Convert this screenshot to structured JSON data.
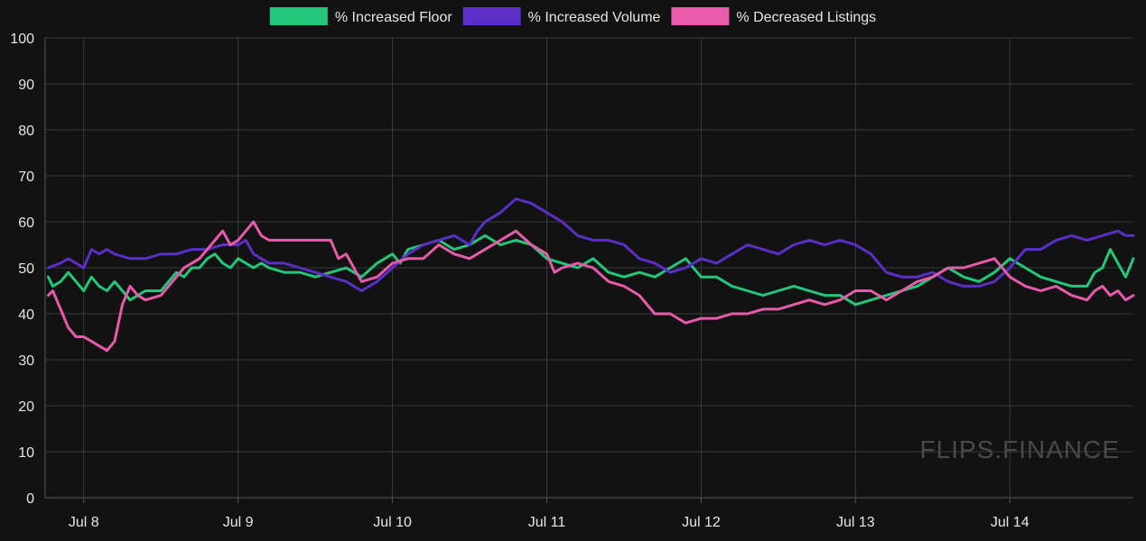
{
  "chart_data": {
    "type": "line",
    "title": "",
    "xlabel": "",
    "ylabel": "",
    "ylim": [
      0,
      100
    ],
    "yticks": [
      0,
      10,
      20,
      30,
      40,
      50,
      60,
      70,
      80,
      90,
      100
    ],
    "xlim": [
      7.75,
      14.8
    ],
    "xticks": [
      {
        "value": 8,
        "label": "Jul 8"
      },
      {
        "value": 9,
        "label": "Jul 9"
      },
      {
        "value": 10,
        "label": "Jul 10"
      },
      {
        "value": 11,
        "label": "Jul 11"
      },
      {
        "value": 12,
        "label": "Jul 12"
      },
      {
        "value": 13,
        "label": "Jul 13"
      },
      {
        "value": 14,
        "label": "Jul 14"
      }
    ],
    "grid": true,
    "legend_position": "top-center",
    "series": [
      {
        "name": "% Increased Floor",
        "color": "#22c77a",
        "points": [
          [
            7.77,
            48
          ],
          [
            7.8,
            46
          ],
          [
            7.85,
            47
          ],
          [
            7.9,
            49
          ],
          [
            7.95,
            47
          ],
          [
            8.0,
            45
          ],
          [
            8.05,
            48
          ],
          [
            8.1,
            46
          ],
          [
            8.15,
            45
          ],
          [
            8.2,
            47
          ],
          [
            8.25,
            45
          ],
          [
            8.3,
            43
          ],
          [
            8.4,
            45
          ],
          [
            8.5,
            45
          ],
          [
            8.55,
            47
          ],
          [
            8.6,
            49
          ],
          [
            8.65,
            48
          ],
          [
            8.7,
            50
          ],
          [
            8.75,
            50
          ],
          [
            8.8,
            52
          ],
          [
            8.85,
            53
          ],
          [
            8.9,
            51
          ],
          [
            8.95,
            50
          ],
          [
            9.0,
            52
          ],
          [
            9.05,
            51
          ],
          [
            9.1,
            50
          ],
          [
            9.15,
            51
          ],
          [
            9.2,
            50
          ],
          [
            9.3,
            49
          ],
          [
            9.4,
            49
          ],
          [
            9.5,
            48
          ],
          [
            9.6,
            49
          ],
          [
            9.7,
            50
          ],
          [
            9.8,
            48
          ],
          [
            9.9,
            51
          ],
          [
            10.0,
            53
          ],
          [
            10.05,
            51
          ],
          [
            10.1,
            54
          ],
          [
            10.2,
            55
          ],
          [
            10.3,
            56
          ],
          [
            10.4,
            54
          ],
          [
            10.5,
            55
          ],
          [
            10.6,
            57
          ],
          [
            10.7,
            55
          ],
          [
            10.8,
            56
          ],
          [
            10.9,
            55
          ],
          [
            11.0,
            52
          ],
          [
            11.1,
            51
          ],
          [
            11.2,
            50
          ],
          [
            11.3,
            52
          ],
          [
            11.4,
            49
          ],
          [
            11.5,
            48
          ],
          [
            11.6,
            49
          ],
          [
            11.7,
            48
          ],
          [
            11.8,
            50
          ],
          [
            11.9,
            52
          ],
          [
            12.0,
            48
          ],
          [
            12.1,
            48
          ],
          [
            12.2,
            46
          ],
          [
            12.3,
            45
          ],
          [
            12.4,
            44
          ],
          [
            12.5,
            45
          ],
          [
            12.6,
            46
          ],
          [
            12.7,
            45
          ],
          [
            12.8,
            44
          ],
          [
            12.9,
            44
          ],
          [
            13.0,
            42
          ],
          [
            13.1,
            43
          ],
          [
            13.2,
            44
          ],
          [
            13.3,
            45
          ],
          [
            13.4,
            46
          ],
          [
            13.5,
            48
          ],
          [
            13.6,
            50
          ],
          [
            13.7,
            48
          ],
          [
            13.8,
            47
          ],
          [
            13.9,
            49
          ],
          [
            14.0,
            52
          ],
          [
            14.05,
            51
          ],
          [
            14.1,
            50
          ],
          [
            14.2,
            48
          ],
          [
            14.3,
            47
          ],
          [
            14.4,
            46
          ],
          [
            14.5,
            46
          ],
          [
            14.55,
            49
          ],
          [
            14.6,
            50
          ],
          [
            14.65,
            54
          ],
          [
            14.7,
            51
          ],
          [
            14.75,
            48
          ],
          [
            14.8,
            52
          ]
        ]
      },
      {
        "name": "% Increased Volume",
        "color": "#5b2ec8",
        "points": [
          [
            7.77,
            50
          ],
          [
            7.85,
            51
          ],
          [
            7.9,
            52
          ],
          [
            8.0,
            50
          ],
          [
            8.05,
            54
          ],
          [
            8.1,
            53
          ],
          [
            8.15,
            54
          ],
          [
            8.2,
            53
          ],
          [
            8.3,
            52
          ],
          [
            8.4,
            52
          ],
          [
            8.5,
            53
          ],
          [
            8.6,
            53
          ],
          [
            8.7,
            54
          ],
          [
            8.8,
            54
          ],
          [
            8.9,
            55
          ],
          [
            9.0,
            55
          ],
          [
            9.05,
            56
          ],
          [
            9.1,
            53
          ],
          [
            9.2,
            51
          ],
          [
            9.3,
            51
          ],
          [
            9.4,
            50
          ],
          [
            9.5,
            49
          ],
          [
            9.6,
            48
          ],
          [
            9.7,
            47
          ],
          [
            9.8,
            45
          ],
          [
            9.9,
            47
          ],
          [
            10.0,
            50
          ],
          [
            10.1,
            53
          ],
          [
            10.2,
            55
          ],
          [
            10.3,
            56
          ],
          [
            10.4,
            57
          ],
          [
            10.5,
            55
          ],
          [
            10.55,
            58
          ],
          [
            10.6,
            60
          ],
          [
            10.7,
            62
          ],
          [
            10.8,
            65
          ],
          [
            10.9,
            64
          ],
          [
            11.0,
            62
          ],
          [
            11.1,
            60
          ],
          [
            11.2,
            57
          ],
          [
            11.3,
            56
          ],
          [
            11.4,
            56
          ],
          [
            11.5,
            55
          ],
          [
            11.6,
            52
          ],
          [
            11.7,
            51
          ],
          [
            11.8,
            49
          ],
          [
            11.9,
            50
          ],
          [
            12.0,
            52
          ],
          [
            12.1,
            51
          ],
          [
            12.2,
            53
          ],
          [
            12.3,
            55
          ],
          [
            12.4,
            54
          ],
          [
            12.5,
            53
          ],
          [
            12.6,
            55
          ],
          [
            12.7,
            56
          ],
          [
            12.8,
            55
          ],
          [
            12.9,
            56
          ],
          [
            13.0,
            55
          ],
          [
            13.1,
            53
          ],
          [
            13.2,
            49
          ],
          [
            13.3,
            48
          ],
          [
            13.4,
            48
          ],
          [
            13.5,
            49
          ],
          [
            13.6,
            47
          ],
          [
            13.7,
            46
          ],
          [
            13.8,
            46
          ],
          [
            13.9,
            47
          ],
          [
            14.0,
            50
          ],
          [
            14.05,
            52
          ],
          [
            14.1,
            54
          ],
          [
            14.2,
            54
          ],
          [
            14.3,
            56
          ],
          [
            14.4,
            57
          ],
          [
            14.5,
            56
          ],
          [
            14.6,
            57
          ],
          [
            14.7,
            58
          ],
          [
            14.75,
            57
          ],
          [
            14.8,
            57
          ]
        ]
      },
      {
        "name": "% Decreased Listings",
        "color": "#e85aaa",
        "points": [
          [
            7.77,
            44
          ],
          [
            7.8,
            45
          ],
          [
            7.85,
            41
          ],
          [
            7.9,
            37
          ],
          [
            7.95,
            35
          ],
          [
            8.0,
            35
          ],
          [
            8.05,
            34
          ],
          [
            8.1,
            33
          ],
          [
            8.15,
            32
          ],
          [
            8.2,
            34
          ],
          [
            8.25,
            42
          ],
          [
            8.3,
            46
          ],
          [
            8.35,
            44
          ],
          [
            8.4,
            43
          ],
          [
            8.5,
            44
          ],
          [
            8.55,
            46
          ],
          [
            8.6,
            48
          ],
          [
            8.65,
            50
          ],
          [
            8.7,
            51
          ],
          [
            8.75,
            52
          ],
          [
            8.8,
            54
          ],
          [
            8.85,
            56
          ],
          [
            8.9,
            58
          ],
          [
            8.95,
            55
          ],
          [
            9.0,
            56
          ],
          [
            9.05,
            58
          ],
          [
            9.1,
            60
          ],
          [
            9.15,
            57
          ],
          [
            9.2,
            56
          ],
          [
            9.3,
            56
          ],
          [
            9.4,
            56
          ],
          [
            9.5,
            56
          ],
          [
            9.6,
            56
          ],
          [
            9.65,
            52
          ],
          [
            9.7,
            53
          ],
          [
            9.75,
            50
          ],
          [
            9.8,
            47
          ],
          [
            9.9,
            48
          ],
          [
            10.0,
            51
          ],
          [
            10.1,
            52
          ],
          [
            10.2,
            52
          ],
          [
            10.3,
            55
          ],
          [
            10.4,
            53
          ],
          [
            10.5,
            52
          ],
          [
            10.6,
            54
          ],
          [
            10.7,
            56
          ],
          [
            10.8,
            58
          ],
          [
            10.9,
            55
          ],
          [
            11.0,
            53
          ],
          [
            11.05,
            49
          ],
          [
            11.1,
            50
          ],
          [
            11.2,
            51
          ],
          [
            11.3,
            50
          ],
          [
            11.4,
            47
          ],
          [
            11.5,
            46
          ],
          [
            11.6,
            44
          ],
          [
            11.7,
            40
          ],
          [
            11.8,
            40
          ],
          [
            11.9,
            38
          ],
          [
            12.0,
            39
          ],
          [
            12.1,
            39
          ],
          [
            12.2,
            40
          ],
          [
            12.3,
            40
          ],
          [
            12.4,
            41
          ],
          [
            12.5,
            41
          ],
          [
            12.6,
            42
          ],
          [
            12.7,
            43
          ],
          [
            12.8,
            42
          ],
          [
            12.9,
            43
          ],
          [
            13.0,
            45
          ],
          [
            13.1,
            45
          ],
          [
            13.2,
            43
          ],
          [
            13.3,
            45
          ],
          [
            13.4,
            47
          ],
          [
            13.5,
            48
          ],
          [
            13.6,
            50
          ],
          [
            13.7,
            50
          ],
          [
            13.8,
            51
          ],
          [
            13.9,
            52
          ],
          [
            14.0,
            48
          ],
          [
            14.1,
            46
          ],
          [
            14.2,
            45
          ],
          [
            14.3,
            46
          ],
          [
            14.4,
            44
          ],
          [
            14.5,
            43
          ],
          [
            14.55,
            45
          ],
          [
            14.6,
            46
          ],
          [
            14.65,
            44
          ],
          [
            14.7,
            45
          ],
          [
            14.75,
            43
          ],
          [
            14.8,
            44
          ]
        ]
      }
    ]
  },
  "watermark": "FLIPS.FINANCE"
}
